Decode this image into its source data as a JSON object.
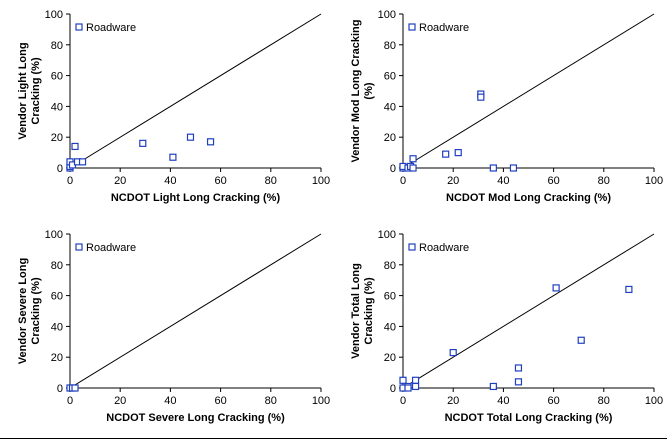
{
  "chart_data": [
    {
      "type": "scatter",
      "xlabel": "NCDOT Light Long Cracking (%)",
      "ylabel": [
        "Vendor Light Long",
        "Cracking (%)"
      ],
      "xlim": [
        0,
        100
      ],
      "ylim": [
        0,
        100
      ],
      "xticks": [
        "0",
        "20",
        "40",
        "60",
        "80",
        "100"
      ],
      "yticks": [
        "0",
        "20",
        "40",
        "60",
        "80",
        "100"
      ],
      "legend": "top-left",
      "equality_line": true,
      "series": [
        {
          "name": "Roadware",
          "marker": "open-square",
          "color": "#1f3fbf",
          "points": [
            [
              0,
              0
            ],
            [
              0,
              1
            ],
            [
              0,
              4
            ],
            [
              1,
              2
            ],
            [
              2,
              14
            ],
            [
              3,
              4
            ],
            [
              5,
              4
            ],
            [
              29,
              16
            ],
            [
              41,
              7
            ],
            [
              48,
              20
            ],
            [
              56,
              17
            ]
          ]
        }
      ]
    },
    {
      "type": "scatter",
      "xlabel": "NCDOT Mod Long Cracking (%)",
      "ylabel": [
        "Vendor Mod Long Cracking",
        "(%)"
      ],
      "xlim": [
        0,
        100
      ],
      "ylim": [
        0,
        100
      ],
      "xticks": [
        "0",
        "20",
        "40",
        "60",
        "80",
        "100"
      ],
      "yticks": [
        "0",
        "20",
        "40",
        "60",
        "80",
        "100"
      ],
      "legend": "top-left",
      "equality_line": true,
      "series": [
        {
          "name": "Roadware",
          "marker": "open-square",
          "color": "#1f3fbf",
          "points": [
            [
              0,
              0
            ],
            [
              0,
              1
            ],
            [
              2,
              0
            ],
            [
              3,
              1
            ],
            [
              4,
              6
            ],
            [
              4,
              0
            ],
            [
              17,
              9
            ],
            [
              22,
              10
            ],
            [
              31,
              48
            ],
            [
              31,
              46
            ],
            [
              36,
              0
            ],
            [
              44,
              0
            ]
          ]
        }
      ]
    },
    {
      "type": "scatter",
      "xlabel": "NCDOT Severe Long Cracking (%)",
      "ylabel": [
        "Vendor Severe Long",
        "Cracking (%)"
      ],
      "xlim": [
        0,
        100
      ],
      "ylim": [
        0,
        100
      ],
      "xticks": [
        "0",
        "20",
        "40",
        "60",
        "80",
        "100"
      ],
      "yticks": [
        "0",
        "20",
        "40",
        "60",
        "80",
        "100"
      ],
      "legend": "top-left",
      "equality_line": true,
      "series": [
        {
          "name": "Roadware",
          "marker": "open-square",
          "color": "#1f3fbf",
          "points": [
            [
              0,
              0
            ],
            [
              1,
              0
            ],
            [
              2,
              0
            ]
          ]
        }
      ]
    },
    {
      "type": "scatter",
      "xlabel": "NCDOT Total Long Cracking (%)",
      "ylabel": [
        "Vendor Total Long",
        "Cracking (%)"
      ],
      "xlim": [
        0,
        100
      ],
      "ylim": [
        0,
        100
      ],
      "xticks": [
        "0",
        "20",
        "40",
        "60",
        "80",
        "100"
      ],
      "yticks": [
        "0",
        "20",
        "40",
        "60",
        "80",
        "100"
      ],
      "legend": "top-left",
      "equality_line": true,
      "series": [
        {
          "name": "Roadware",
          "marker": "open-square",
          "color": "#1f3fbf",
          "points": [
            [
              0,
              0
            ],
            [
              0,
              5
            ],
            [
              2,
              1
            ],
            [
              2,
              0
            ],
            [
              5,
              5
            ],
            [
              5,
              1
            ],
            [
              20,
              23
            ],
            [
              36,
              1
            ],
            [
              46,
              13
            ],
            [
              46,
              4
            ],
            [
              61,
              65
            ],
            [
              71,
              31
            ],
            [
              90,
              64
            ]
          ]
        }
      ]
    }
  ]
}
